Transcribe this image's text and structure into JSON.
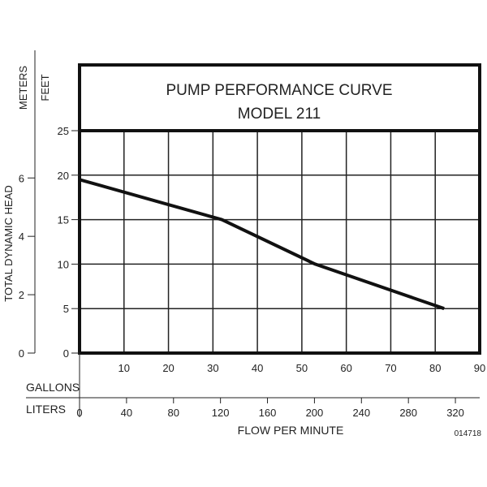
{
  "chart_data": {
    "type": "line",
    "title": "PUMP PERFORMANCE CURVE",
    "subtitle": "MODEL 211",
    "xlabel": "FLOW PER MINUTE",
    "ylabel": "TOTAL DYNAMIC HEAD",
    "x_axes": [
      {
        "unit": "GALLONS",
        "range": [
          0,
          90
        ],
        "ticks": [
          10,
          20,
          30,
          40,
          50,
          60,
          70,
          80,
          90
        ]
      },
      {
        "unit": "LITERS",
        "ticks": [
          0,
          40,
          80,
          120,
          160,
          200,
          240,
          280,
          320
        ]
      }
    ],
    "y_axes": [
      {
        "unit": "FEET",
        "range": [
          0,
          25
        ],
        "ticks": [
          0,
          5,
          10,
          15,
          20,
          25
        ]
      },
      {
        "unit": "METERS",
        "ticks": [
          0,
          2,
          4,
          6
        ]
      }
    ],
    "grid": true,
    "series": [
      {
        "name": "Model 211",
        "x": [
          0,
          32,
          53,
          82
        ],
        "y": [
          19.5,
          15,
          10,
          5
        ]
      }
    ],
    "code": "014718"
  }
}
